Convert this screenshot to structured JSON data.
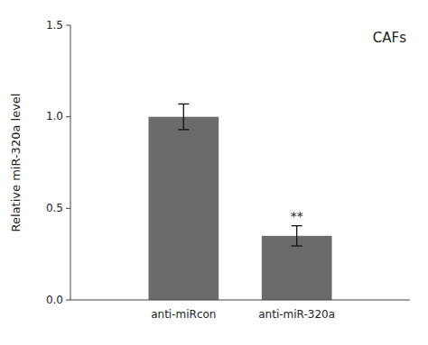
{
  "chart_data": {
    "type": "bar",
    "categories": [
      "anti-miRcon",
      "anti-miR-320a"
    ],
    "values": [
      1.0,
      0.35
    ],
    "errors": [
      0.07,
      0.055
    ],
    "color": "#6b6b6b",
    "ylabel": "Relative miR-320a level",
    "ylim": [
      0,
      1.5
    ],
    "yticks": [
      {
        "value": 0.0,
        "label": "0.0"
      },
      {
        "value": 0.5,
        "label": "0.5"
      },
      {
        "value": 1.0,
        "label": "1.0"
      },
      {
        "value": 1.5,
        "label": "1.5"
      }
    ],
    "grid": false,
    "annotations": [
      {
        "text": "**",
        "category": "anti-miR-320a"
      },
      {
        "text": "CAFs"
      }
    ]
  }
}
